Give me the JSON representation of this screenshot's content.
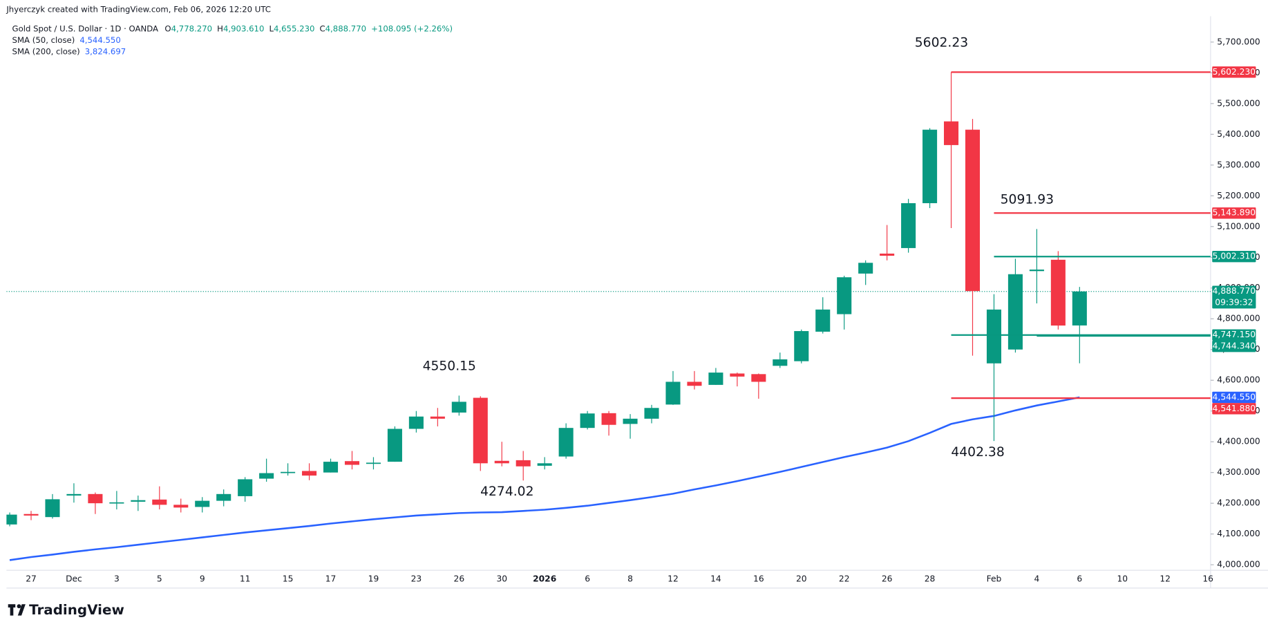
{
  "header": {
    "created": "Jhyerczyk created with TradingView.com, Feb 06, 2026 12:20 UTC",
    "symbol": "Gold Spot / U.S. Dollar · 1D · OANDA",
    "ohlc": [
      {
        "key": "O",
        "value": "4,778.270"
      },
      {
        "key": "H",
        "value": "4,903.610"
      },
      {
        "key": "L",
        "value": "4,655.230"
      },
      {
        "key": "C",
        "value": "4,888.770"
      }
    ],
    "change": "+108.095 (+2.26%)"
  },
  "brand": "TradingView",
  "chart_data": {
    "type": "candlestick",
    "categories": [
      null,
      "27",
      null,
      "Dec",
      null,
      "3",
      null,
      "5",
      null,
      "9",
      null,
      "11",
      null,
      "15",
      null,
      "17",
      null,
      "19",
      null,
      "23",
      null,
      "26",
      null,
      "30",
      null,
      "2026",
      null,
      "6",
      null,
      "8",
      null,
      "12",
      null,
      "14",
      null,
      "16",
      null,
      "20",
      null,
      "22",
      null,
      "26",
      null,
      "28",
      null,
      null,
      "Feb",
      null,
      "4",
      null,
      "6",
      null,
      "10",
      null,
      "12",
      null,
      "16"
    ],
    "open": [
      4131,
      4165,
      4155,
      4225,
      4230,
      4200,
      4205,
      4212,
      4195,
      4188,
      4208,
      4223,
      4280,
      4300,
      4305,
      4300,
      4337,
      4330,
      4335,
      4442,
      4482,
      4495,
      4543,
      4338,
      4340,
      4322,
      4352,
      4445,
      4493,
      4458,
      4475,
      4521,
      4595,
      4585,
      4622,
      4620,
      4647,
      4662,
      4758,
      4815,
      4947,
      5012,
      5030,
      5176,
      5442,
      5415,
      4655,
      4700,
      4955,
      4992,
      4778.27,
      null,
      null,
      null,
      null,
      null,
      null
    ],
    "high": [
      4170,
      4175,
      4230,
      4265,
      4235,
      4240,
      4225,
      4255,
      4215,
      4220,
      4245,
      4285,
      4345,
      4330,
      4330,
      4345,
      4370,
      4350,
      4450,
      4500,
      4510,
      4550.15,
      4548,
      4400,
      4370,
      4350,
      4460,
      4500,
      4500,
      4490,
      4520,
      4630,
      4630,
      4640,
      4625,
      4622,
      4690,
      4765,
      4870,
      4940,
      4990,
      5105,
      5190,
      5420,
      5602.23,
      5450,
      4880,
      4995,
      5091.93,
      5020,
      4903.61,
      null,
      null,
      null,
      null,
      null,
      null
    ],
    "low": [
      4125,
      4145,
      4150,
      4202,
      4165,
      4180,
      4175,
      4180,
      4170,
      4170,
      4190,
      4205,
      4270,
      4290,
      4275,
      4300,
      4310,
      4310,
      4335,
      4430,
      4450,
      4485,
      4305,
      4320,
      4274.02,
      4310,
      4345,
      4440,
      4420,
      4410,
      4460,
      4520,
      4570,
      4585,
      4580,
      4540,
      4640,
      4655,
      4752,
      4765,
      4910,
      4990,
      5015,
      5160,
      5095,
      4680,
      4402.38,
      4690,
      4850,
      4765,
      4655.23,
      null,
      null,
      null,
      null,
      null,
      null
    ],
    "close": [
      4163,
      4160,
      4213,
      4230,
      4200,
      4203,
      4210,
      4195,
      4186,
      4208,
      4230,
      4278,
      4298,
      4302,
      4290,
      4335,
      4325,
      4332,
      4442,
      4482,
      4475,
      4530,
      4330,
      4330,
      4320,
      4330,
      4445,
      4492,
      4455,
      4475,
      4510,
      4595,
      4582,
      4625,
      4612,
      4595,
      4668,
      4760,
      4830,
      4935,
      4982,
      5005,
      5176,
      5415,
      5365,
      4890,
      4830,
      4945,
      4960,
      4778,
      4888.77,
      null,
      null,
      null,
      null,
      null,
      null
    ],
    "up_color": "#089981",
    "down_color": "#f23645",
    "sma": [
      {
        "name": "SMA (50, close)",
        "value_label": "4,544.550",
        "color": "#2962ff",
        "values": [
          4015,
          4025,
          4033,
          4042,
          4050,
          4057,
          4065,
          4073,
          4081,
          4089,
          4097,
          4105,
          4112,
          4119,
          4126,
          4134,
          4141,
          4148,
          4154,
          4160,
          4164,
          4168,
          4170,
          4171,
          4175,
          4179,
          4185,
          4192,
          4201,
          4210,
          4220,
          4231,
          4245,
          4258,
          4272,
          4287,
          4302,
          4318,
          4334,
          4350,
          4365,
          4381,
          4402,
          4429,
          4458,
          4473,
          4484,
          4502,
          4518,
          4531,
          4544.55,
          null,
          null,
          null,
          null,
          null,
          null
        ]
      },
      {
        "name": "SMA (200, close)",
        "value_label": "3,824.697",
        "color": "#2962ff"
      }
    ],
    "annotations": [
      {
        "value": 5602.23,
        "label": "5602.23"
      },
      {
        "value": 5091.93,
        "label": "5091.93"
      },
      {
        "value": 4550.15,
        "label": "4550.15"
      },
      {
        "value": 4274.02,
        "label": "4274.02"
      },
      {
        "value": 4402.38,
        "label": "4402.38"
      }
    ],
    "levels": [
      {
        "value": 5602.23,
        "label": "5,602.230",
        "color": "#f23645"
      },
      {
        "value": 5143.89,
        "label": "5,143.890",
        "color": "#f23645"
      },
      {
        "value": 5002.31,
        "label": "5,002.310",
        "color": "#089981"
      },
      {
        "value": 4747.15,
        "label": "4,747.150",
        "color": "#089981"
      },
      {
        "value": 4744.34,
        "label": "4,744.340",
        "color": "#089981"
      },
      {
        "value": 4541.88,
        "label": "4,541.880",
        "color": "#f23645"
      }
    ],
    "last_price_label": "4,888.770",
    "countdown": "09:39:32",
    "ylim": [
      3982,
      5784
    ],
    "yticks": [
      {
        "value": 4000,
        "label": "4,000.000"
      },
      {
        "value": 4100,
        "label": "4,100.000"
      },
      {
        "value": 4200,
        "label": "4,200.000"
      },
      {
        "value": 4300,
        "label": "4,300.000"
      },
      {
        "value": 4400,
        "label": "4,400.000"
      },
      {
        "value": 4500,
        "label": "4,500.000"
      },
      {
        "value": 4600,
        "label": "4,600.000"
      },
      {
        "value": 4700,
        "label": "4,700.000"
      },
      {
        "value": 4800,
        "label": "4,800.000"
      },
      {
        "value": 4900,
        "label": "4,900.000"
      },
      {
        "value": 5000,
        "label": "5,000.000"
      },
      {
        "value": 5100,
        "label": "5,100.000"
      },
      {
        "value": 5200,
        "label": "5,200.000"
      },
      {
        "value": 5300,
        "label": "5,300.000"
      },
      {
        "value": 5400,
        "label": "5,400.000"
      },
      {
        "value": 5500,
        "label": "5,500.000"
      },
      {
        "value": 5600,
        "label": "5,600.000"
      },
      {
        "value": 5700,
        "label": "5,700.000"
      }
    ],
    "grid": false
  }
}
